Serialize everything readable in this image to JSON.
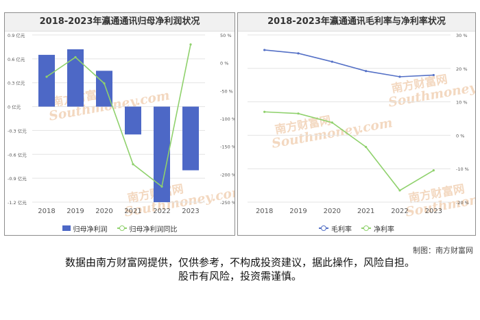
{
  "charts": {
    "left_title": "2018-2023年瀛通通讯归母净利润状况",
    "right_title": "2018-2023年瀛通通讯毛利率与净利率状况"
  },
  "chart_data": [
    {
      "type": "bar",
      "title": "2018-2023年瀛通通讯归母净利润状况",
      "categories": [
        "2018",
        "2019",
        "2020",
        "2021",
        "2022",
        "2023"
      ],
      "series": [
        {
          "name": "归母净利润",
          "type": "bar",
          "axis": "left",
          "color": "#4d68c6",
          "values": [
            0.65,
            0.72,
            0.45,
            -0.35,
            -1.2,
            -0.8
          ]
        },
        {
          "name": "归母净利润同比",
          "type": "line",
          "axis": "right",
          "color": "#8fd16c",
          "values": [
            -25,
            10,
            -37,
            -182,
            -222,
            33
          ]
        }
      ],
      "y_left": {
        "min": -1.2,
        "max": 0.9,
        "ticks": [
          0.9,
          0.6,
          0.3,
          0,
          -0.3,
          -0.6,
          -0.9,
          -1.2
        ],
        "tick_labels": [
          "0.9 亿元",
          "0.6 亿元",
          "0.3 亿元",
          "0 亿元",
          "-0.3 亿元",
          "-0.6 亿元",
          "-0.9 亿元",
          "-1.2 亿元"
        ]
      },
      "y_right": {
        "min": -250,
        "max": 50,
        "ticks": [
          50,
          0,
          -50,
          -100,
          -150,
          -200,
          -250
        ],
        "tick_labels": [
          "50 %",
          "0 %",
          "-50 %",
          "-100 %",
          "-150 %",
          "-200 %",
          "-250 %"
        ]
      },
      "grid": true,
      "legend_position": "bottom"
    },
    {
      "type": "line",
      "title": "2018-2023年瀛通通讯毛利率与净利率状况",
      "categories": [
        "2018",
        "2019",
        "2020",
        "2021",
        "2022",
        "2023"
      ],
      "series": [
        {
          "name": "毛利率",
          "color": "#5470c6",
          "values": [
            25.5,
            24.5,
            22,
            19.2,
            17.5,
            18
          ]
        },
        {
          "name": "净利率",
          "color": "#8fd16c",
          "values": [
            7,
            6.5,
            3.8,
            -3.5,
            -16.5,
            -10.5
          ]
        }
      ],
      "y": {
        "min": -20,
        "max": 30,
        "ticks": [
          30,
          20,
          10,
          0,
          -10,
          -20
        ],
        "tick_labels": [
          "30 %",
          "20 %",
          "10 %",
          "0 %",
          "-10 %",
          "-20 %"
        ]
      },
      "grid": true,
      "legend_position": "bottom"
    }
  ],
  "credit": "制图：南方财富网",
  "disclaimer_line1": "数据由南方财富网提供，仅供参考，不构成投资建议，据此操作，风险自担。",
  "disclaimer_line2": "股市有风险，投资需谨慎。",
  "watermark": {
    "cn": "南方财富网",
    "en": "Southmoney.com"
  },
  "colors": {
    "bar": "#4d68c6",
    "line_green": "#8fd16c",
    "line_blue": "#5470c6",
    "watermark": "#f3d8c0"
  }
}
